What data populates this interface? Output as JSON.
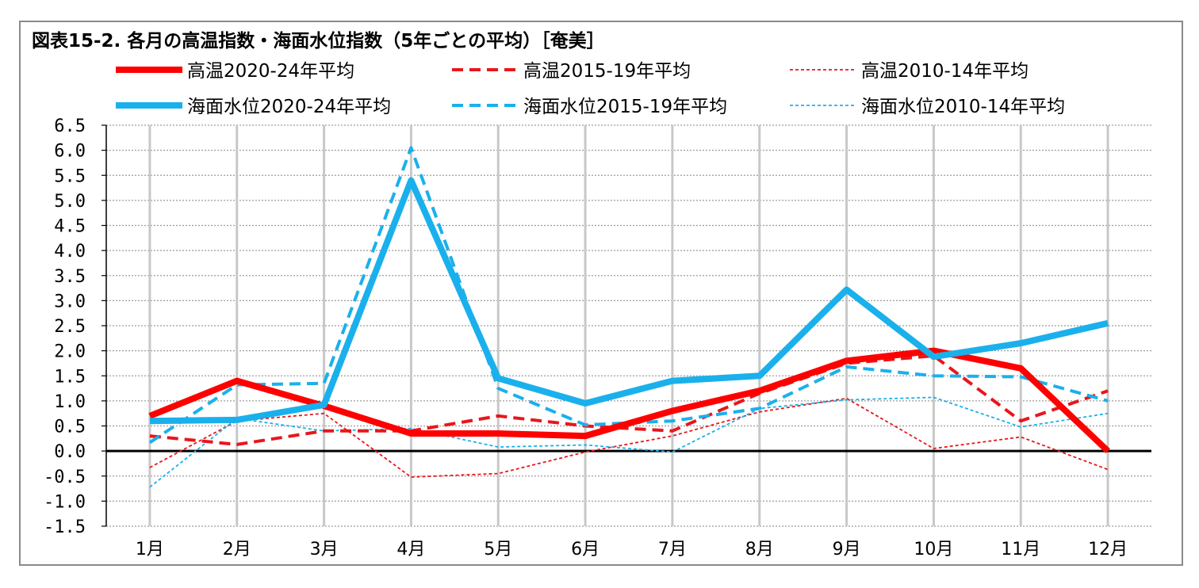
{
  "chart_data": {
    "type": "line",
    "title": "図表15-2. 各月の高温指数・海面水位指数（5年ごとの平均）［奄美］",
    "categories": [
      "1月",
      "2月",
      "3月",
      "4月",
      "5月",
      "6月",
      "7月",
      "8月",
      "9月",
      "10月",
      "11月",
      "12月"
    ],
    "ylim": [
      -1.5,
      6.5
    ],
    "yticks": [
      "6.5",
      "6.0",
      "5.5",
      "5.0",
      "4.5",
      "4.0",
      "3.5",
      "3.0",
      "2.5",
      "2.0",
      "1.5",
      "1.0",
      "0.5",
      "0.0",
      "-0.5",
      "-1.0",
      "-1.5"
    ],
    "grid": true,
    "legend_position": "top",
    "series": [
      {
        "name": "高温2020-24年平均",
        "color": "#ff0000",
        "style": "solid-thick",
        "values": [
          0.7,
          1.4,
          0.9,
          0.35,
          0.35,
          0.3,
          0.8,
          1.2,
          1.8,
          2.0,
          1.65,
          0.0
        ]
      },
      {
        "name": "高温2015-19年平均",
        "color": "#e8161c",
        "style": "dashed-medium",
        "values": [
          0.3,
          0.13,
          0.4,
          0.4,
          0.7,
          0.5,
          0.4,
          1.15,
          1.75,
          1.9,
          0.6,
          1.2
        ]
      },
      {
        "name": "高温2010-14年平均",
        "color": "#e8161c",
        "style": "dotted-thin",
        "values": [
          -0.33,
          0.6,
          0.75,
          -0.52,
          -0.45,
          -0.02,
          0.3,
          0.78,
          1.05,
          0.05,
          0.28,
          -0.37
        ]
      },
      {
        "name": "海面水位2020-24年平均",
        "color": "#1ab0ec",
        "style": "solid-thick",
        "values": [
          0.6,
          0.62,
          0.92,
          5.4,
          1.45,
          0.95,
          1.4,
          1.5,
          3.22,
          1.88,
          2.15,
          2.55
        ]
      },
      {
        "name": "海面水位2015-19年平均",
        "color": "#1ab0ec",
        "style": "dashed-medium",
        "values": [
          0.17,
          1.32,
          1.35,
          6.05,
          1.25,
          0.52,
          0.6,
          0.85,
          1.68,
          1.5,
          1.48,
          1.0
        ]
      },
      {
        "name": "海面水位2010-14年平均",
        "color": "#1ab0ec",
        "style": "dotted-thin",
        "values": [
          -0.72,
          0.65,
          0.4,
          0.45,
          0.08,
          0.12,
          -0.02,
          0.85,
          1.02,
          1.07,
          0.48,
          0.75
        ]
      }
    ]
  }
}
